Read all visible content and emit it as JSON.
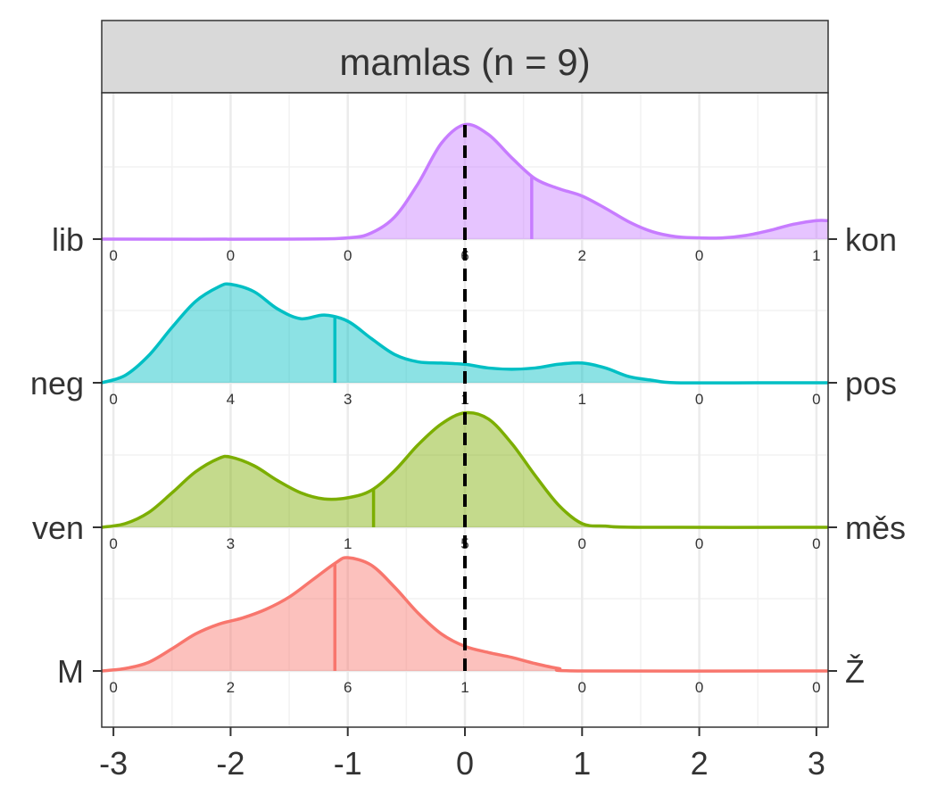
{
  "chart_data": {
    "type": "area",
    "title": "mamlas (n = 9)",
    "x_ticks": [
      "-3",
      "-2",
      "-1",
      "0",
      "1",
      "2",
      "3"
    ],
    "xlim": [
      -3.1,
      3.1
    ],
    "x_tick_values": [
      -3,
      -2,
      -1,
      0,
      1,
      2,
      3
    ],
    "reference_line_x": 0,
    "grid": true,
    "count_positions": [
      -3,
      -2,
      -1,
      0,
      1,
      2,
      3
    ],
    "series": [
      {
        "left_label": "lib",
        "right_label": "kon",
        "color": "#C77CFF",
        "mean": 0.57,
        "counts": [
          "0",
          "0",
          "0",
          "6",
          "2",
          "0",
          "1"
        ],
        "density": [
          [
            -3.1,
            0.0
          ],
          [
            -1.5,
            0.0
          ],
          [
            -1.0,
            0.01
          ],
          [
            -0.8,
            0.05
          ],
          [
            -0.6,
            0.18
          ],
          [
            -0.4,
            0.45
          ],
          [
            -0.2,
            0.78
          ],
          [
            0.0,
            0.93
          ],
          [
            0.2,
            0.85
          ],
          [
            0.4,
            0.66
          ],
          [
            0.6,
            0.49
          ],
          [
            0.8,
            0.41
          ],
          [
            1.0,
            0.35
          ],
          [
            1.2,
            0.25
          ],
          [
            1.4,
            0.14
          ],
          [
            1.6,
            0.06
          ],
          [
            1.8,
            0.02
          ],
          [
            2.0,
            0.01
          ],
          [
            2.2,
            0.01
          ],
          [
            2.4,
            0.03
          ],
          [
            2.6,
            0.07
          ],
          [
            2.8,
            0.12
          ],
          [
            3.0,
            0.15
          ],
          [
            3.1,
            0.15
          ]
        ]
      },
      {
        "left_label": "neg",
        "right_label": "pos",
        "color": "#00BFC4",
        "mean": -1.11,
        "counts": [
          "0",
          "4",
          "3",
          "1",
          "1",
          "0",
          "0"
        ],
        "density": [
          [
            -3.1,
            0.0
          ],
          [
            -2.9,
            0.06
          ],
          [
            -2.7,
            0.22
          ],
          [
            -2.5,
            0.45
          ],
          [
            -2.3,
            0.66
          ],
          [
            -2.1,
            0.78
          ],
          [
            -2.0,
            0.8
          ],
          [
            -1.8,
            0.74
          ],
          [
            -1.6,
            0.6
          ],
          [
            -1.4,
            0.52
          ],
          [
            -1.2,
            0.55
          ],
          [
            -1.0,
            0.5
          ],
          [
            -0.8,
            0.36
          ],
          [
            -0.6,
            0.23
          ],
          [
            -0.4,
            0.17
          ],
          [
            -0.2,
            0.16
          ],
          [
            0.0,
            0.15
          ],
          [
            0.2,
            0.12
          ],
          [
            0.4,
            0.11
          ],
          [
            0.6,
            0.12
          ],
          [
            0.8,
            0.15
          ],
          [
            1.0,
            0.16
          ],
          [
            1.2,
            0.12
          ],
          [
            1.4,
            0.05
          ],
          [
            1.6,
            0.02
          ],
          [
            1.8,
            0.0
          ],
          [
            2.5,
            0.0
          ],
          [
            3.1,
            0.0
          ]
        ]
      },
      {
        "left_label": "ven",
        "right_label": "měs",
        "color": "#7CAE00",
        "mean": -0.78,
        "counts": [
          "0",
          "3",
          "1",
          "5",
          "0",
          "0",
          "0"
        ],
        "density": [
          [
            -3.1,
            0.0
          ],
          [
            -2.9,
            0.03
          ],
          [
            -2.7,
            0.12
          ],
          [
            -2.5,
            0.28
          ],
          [
            -2.3,
            0.45
          ],
          [
            -2.1,
            0.56
          ],
          [
            -2.0,
            0.57
          ],
          [
            -1.8,
            0.5
          ],
          [
            -1.6,
            0.38
          ],
          [
            -1.4,
            0.28
          ],
          [
            -1.2,
            0.23
          ],
          [
            -1.0,
            0.24
          ],
          [
            -0.8,
            0.3
          ],
          [
            -0.6,
            0.46
          ],
          [
            -0.4,
            0.67
          ],
          [
            -0.2,
            0.84
          ],
          [
            0.0,
            0.93
          ],
          [
            0.2,
            0.88
          ],
          [
            0.4,
            0.68
          ],
          [
            0.6,
            0.42
          ],
          [
            0.8,
            0.18
          ],
          [
            1.0,
            0.03
          ],
          [
            1.2,
            0.01
          ],
          [
            1.5,
            0.0
          ],
          [
            3.1,
            0.0
          ]
        ]
      },
      {
        "left_label": "M",
        "right_label": "Ž",
        "color": "#F8766D",
        "mean": -1.11,
        "counts": [
          "0",
          "2",
          "6",
          "1",
          "0",
          "0",
          "0"
        ],
        "density": [
          [
            -3.1,
            0.0
          ],
          [
            -2.9,
            0.02
          ],
          [
            -2.7,
            0.07
          ],
          [
            -2.5,
            0.18
          ],
          [
            -2.3,
            0.3
          ],
          [
            -2.1,
            0.38
          ],
          [
            -1.9,
            0.43
          ],
          [
            -1.7,
            0.5
          ],
          [
            -1.5,
            0.6
          ],
          [
            -1.3,
            0.74
          ],
          [
            -1.1,
            0.88
          ],
          [
            -1.0,
            0.92
          ],
          [
            -0.8,
            0.86
          ],
          [
            -0.6,
            0.68
          ],
          [
            -0.4,
            0.47
          ],
          [
            -0.2,
            0.3
          ],
          [
            0.0,
            0.2
          ],
          [
            0.2,
            0.15
          ],
          [
            0.4,
            0.11
          ],
          [
            0.6,
            0.06
          ],
          [
            0.8,
            0.02
          ],
          [
            1.0,
            0.0
          ],
          [
            3.1,
            0.0
          ]
        ]
      }
    ]
  }
}
